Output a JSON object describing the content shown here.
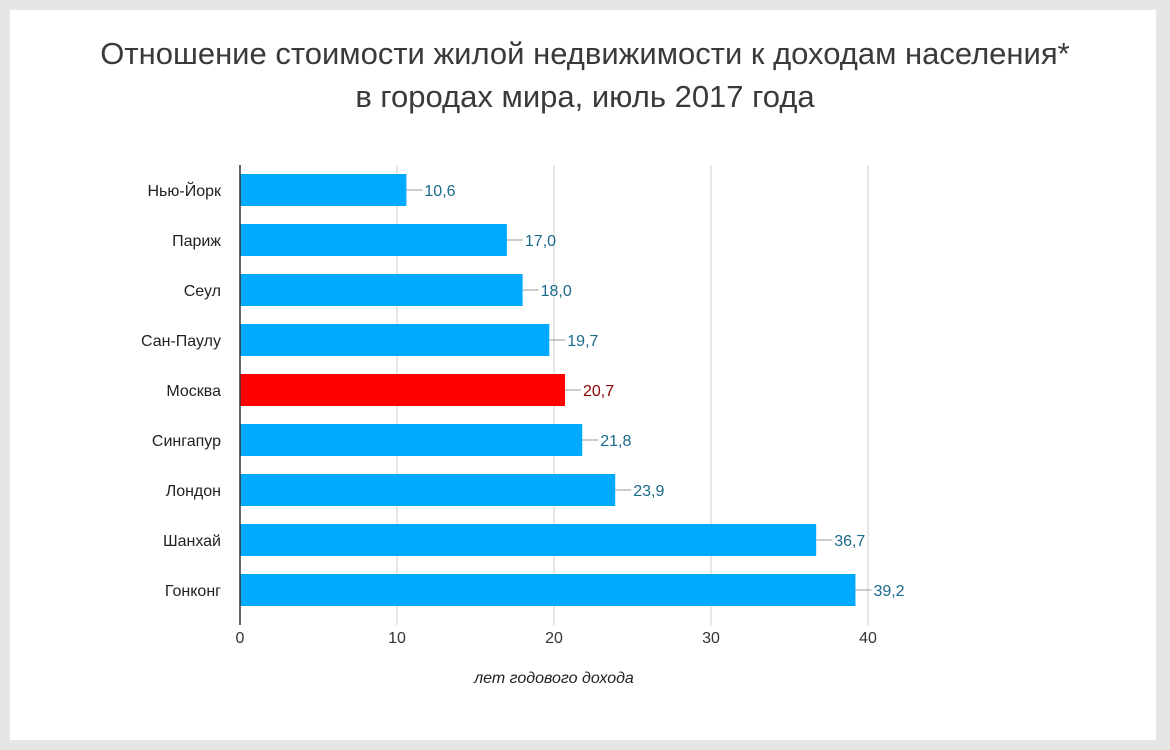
{
  "title": {
    "line1": "Отношение стоимости жилой недвижимости к доходам населения*",
    "line2": "в городах мира, июль 2017 года"
  },
  "colors": {
    "bar": "#00aaff",
    "highlight_bar": "#ff0000",
    "label": "#1a6a8a",
    "highlight_label": "#8b0000"
  },
  "chart_data": {
    "type": "bar",
    "orientation": "horizontal",
    "title": "Отношение стоимости жилой недвижимости к доходам населения* в городах мира, июль 2017 года",
    "categories": [
      "Нью-Йорк",
      "Париж",
      "Сеул",
      "Сан-Паулу",
      "Москва",
      "Сингапур",
      "Лондон",
      "Шанхай",
      "Гонконг"
    ],
    "values": [
      10.6,
      17.0,
      18.0,
      19.7,
      20.7,
      21.8,
      23.9,
      36.7,
      39.2
    ],
    "value_labels": [
      "10,6",
      "17,0",
      "18,0",
      "19,7",
      "20,7",
      "21,8",
      "23,9",
      "36,7",
      "39,2"
    ],
    "highlight_category": "Москва",
    "xlabel": "лет годового дохода",
    "ylabel": "",
    "xlim": [
      0,
      40
    ],
    "x_ticks": [
      0,
      10,
      20,
      30,
      40
    ],
    "grid": true
  }
}
